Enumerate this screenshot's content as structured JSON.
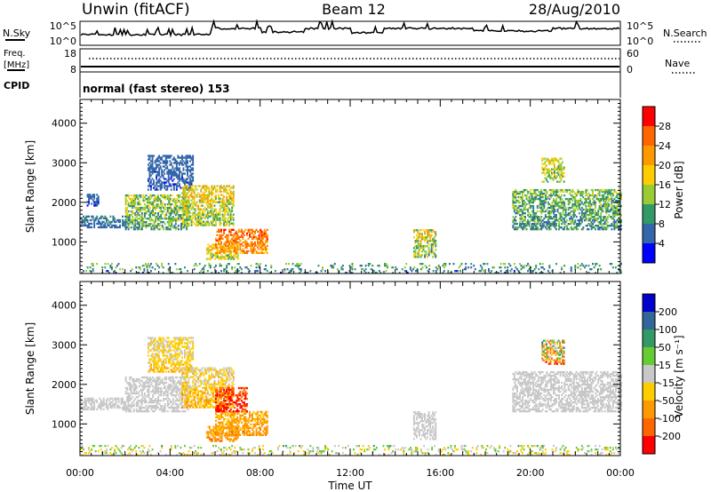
{
  "header": {
    "station": "Unwin (fitACF)",
    "beam": "Beam 12",
    "date": "28/Aug/2010"
  },
  "top_panels": {
    "nsky_label": "N.Sky",
    "nsky_ticks": [
      "10^5",
      "10^0"
    ],
    "nsearch_label": "N.Search",
    "nsearch_ticks": [
      "10^5",
      "10^0"
    ],
    "freq_label_1": "Freq.",
    "freq_label_2": "[MHz]",
    "freq_ticks": [
      "18",
      "8"
    ],
    "nave_label": "Nave",
    "nave_ticks": [
      "60",
      "0"
    ],
    "cpid_label": "CPID",
    "cpid_text": "normal (fast stereo) 153"
  },
  "power_colorbar": {
    "label": "Power [dB]",
    "ticks": [
      "28",
      "24",
      "20",
      "16",
      "12",
      "8",
      "4"
    ],
    "colors": [
      "#ff0000",
      "#ff6600",
      "#ff9900",
      "#ffcc00",
      "#99cc33",
      "#339966",
      "#3366aa",
      "#0000ff"
    ]
  },
  "velocity_colorbar": {
    "label": "Velocity [m s⁻¹]",
    "ticks": [
      "200",
      "100",
      "50",
      "15",
      "-15",
      "-50",
      "-100",
      "-200"
    ],
    "colors": [
      "#0000cc",
      "#336699",
      "#339966",
      "#66cc33",
      "#c8c8c8",
      "#ffcc00",
      "#ff9900",
      "#ff6600",
      "#ff0000"
    ]
  },
  "chart_data": [
    {
      "type": "heatmap",
      "name": "power",
      "ylabel": "Slant Range [km]",
      "yticks": [
        1000,
        2000,
        3000,
        4000
      ],
      "ylim": [
        200,
        4600
      ],
      "xlim": [
        0,
        24
      ],
      "clim": [
        0,
        32
      ],
      "clusters": [
        {
          "t0": 0.0,
          "t1": 2.2,
          "r0": 1350,
          "r1": 1650,
          "v0": 4,
          "v1": 10
        },
        {
          "t0": 0.3,
          "t1": 0.8,
          "r0": 1900,
          "r1": 2200,
          "v0": 3,
          "v1": 8
        },
        {
          "t0": 2.0,
          "t1": 4.8,
          "r0": 1300,
          "r1": 2200,
          "v0": 5,
          "v1": 20
        },
        {
          "t0": 3.0,
          "t1": 5.0,
          "r0": 2300,
          "r1": 3200,
          "v0": 3,
          "v1": 8
        },
        {
          "t0": 4.5,
          "t1": 6.8,
          "r0": 1400,
          "r1": 2400,
          "v0": 8,
          "v1": 24
        },
        {
          "t0": 5.6,
          "t1": 7.0,
          "r0": 550,
          "r1": 950,
          "v0": 10,
          "v1": 24
        },
        {
          "t0": 6.0,
          "t1": 8.3,
          "r0": 700,
          "r1": 1300,
          "v0": 18,
          "v1": 30
        },
        {
          "t0": 14.8,
          "t1": 15.8,
          "r0": 600,
          "r1": 1300,
          "v0": 6,
          "v1": 24
        },
        {
          "t0": 19.2,
          "t1": 24.0,
          "r0": 1300,
          "r1": 2300,
          "v0": 4,
          "v1": 18
        },
        {
          "t0": 20.5,
          "t1": 21.5,
          "r0": 2500,
          "r1": 3100,
          "v0": 8,
          "v1": 22
        },
        {
          "t0": 0.0,
          "t1": 24.0,
          "r0": 200,
          "r1": 450,
          "v0": 3,
          "v1": 16
        }
      ]
    },
    {
      "type": "heatmap",
      "name": "velocity",
      "ylabel": "Slant Range [km]",
      "xlabel": "Time UT",
      "xticks": [
        "00:00",
        "04:00",
        "08:00",
        "12:00",
        "16:00",
        "20:00",
        "00:00"
      ],
      "yticks": [
        1000,
        2000,
        3000,
        4000
      ],
      "ylim": [
        200,
        4600
      ],
      "xlim": [
        0,
        24
      ],
      "clim": [
        -250,
        250
      ],
      "clusters": [
        {
          "t0": 0.0,
          "t1": 2.2,
          "r0": 1350,
          "r1": 1650,
          "v0": -14,
          "v1": 14
        },
        {
          "t0": 2.0,
          "t1": 4.8,
          "r0": 1300,
          "r1": 2200,
          "v0": -14,
          "v1": 14
        },
        {
          "t0": 3.0,
          "t1": 5.0,
          "r0": 2300,
          "r1": 3200,
          "v0": -60,
          "v1": 10
        },
        {
          "t0": 4.5,
          "t1": 6.8,
          "r0": 1400,
          "r1": 2400,
          "v0": -80,
          "v1": 14
        },
        {
          "t0": 5.6,
          "t1": 7.0,
          "r0": 550,
          "r1": 950,
          "v0": -110,
          "v1": -30
        },
        {
          "t0": 6.0,
          "t1": 8.3,
          "r0": 700,
          "r1": 1300,
          "v0": -110,
          "v1": -20
        },
        {
          "t0": 6.0,
          "t1": 7.4,
          "r0": 1300,
          "r1": 1900,
          "v0": -260,
          "v1": -150
        },
        {
          "t0": 14.8,
          "t1": 15.8,
          "r0": 600,
          "r1": 1300,
          "v0": -14,
          "v1": 14
        },
        {
          "t0": 19.2,
          "t1": 24.0,
          "r0": 1300,
          "r1": 2300,
          "v0": -14,
          "v1": 14
        },
        {
          "t0": 20.5,
          "t1": 21.5,
          "r0": 2500,
          "r1": 3100,
          "v0": -230,
          "v1": 150
        },
        {
          "t0": 0.0,
          "t1": 24.0,
          "r0": 200,
          "r1": 450,
          "v0": -60,
          "v1": 60
        }
      ]
    }
  ]
}
